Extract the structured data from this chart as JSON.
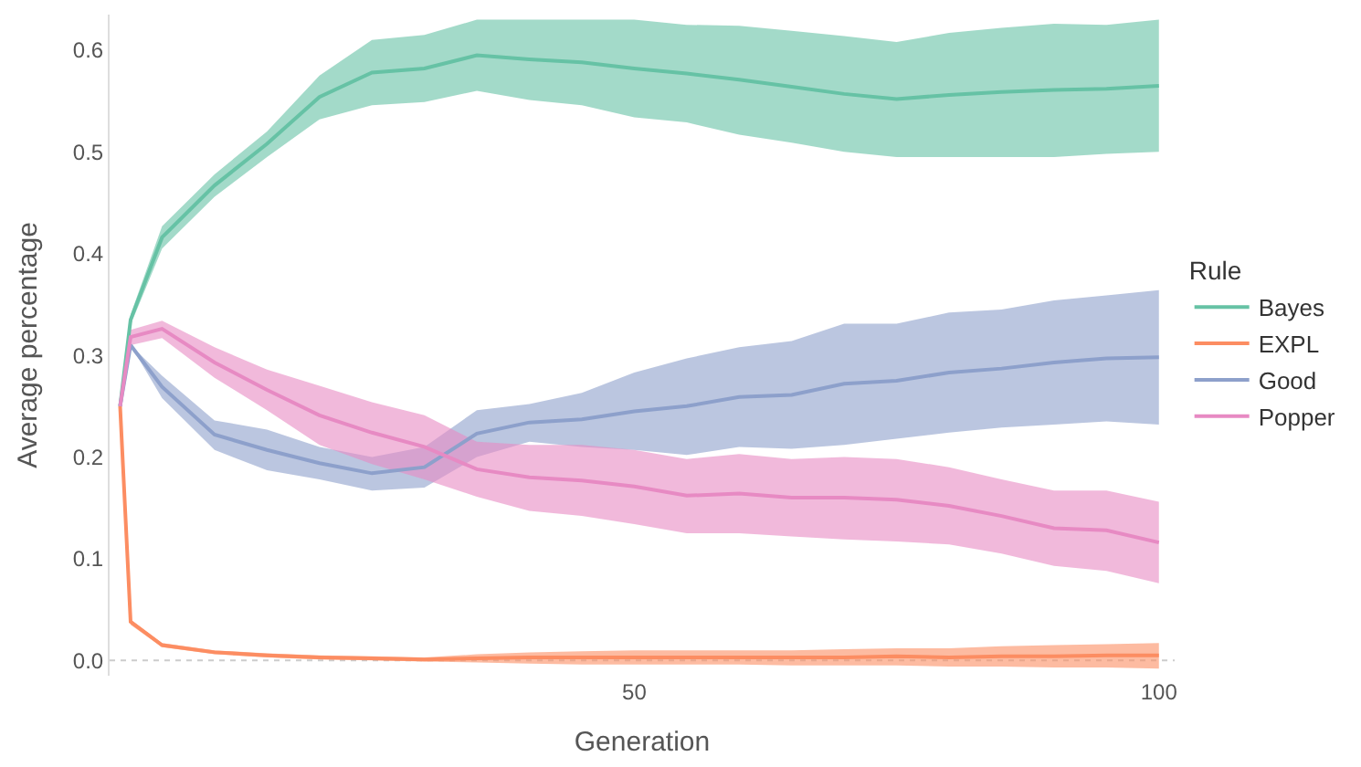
{
  "chart_data": {
    "type": "line",
    "xlabel": "Generation",
    "ylabel": "Average percentage",
    "legend_title": "Rule",
    "legend": "right",
    "x": [
      1,
      2,
      5,
      10,
      15,
      20,
      25,
      30,
      35,
      40,
      45,
      50,
      55,
      60,
      65,
      70,
      75,
      80,
      85,
      90,
      95,
      100
    ],
    "xlim": [
      0,
      101.5
    ],
    "xticks": [
      50,
      100
    ],
    "ylim": [
      -0.015,
      0.635
    ],
    "yticks": [
      {
        "value": 0,
        "label": "0.0"
      },
      0.1,
      0.2,
      0.3,
      0.4,
      0.5,
      0.6
    ],
    "grid": false,
    "ref_lines": [
      {
        "axis": "y",
        "value": 0,
        "color": "#cccccc",
        "line_style": "dotted"
      }
    ],
    "series": [
      {
        "name": "Bayes",
        "color": "#66c2a5",
        "values": [
          0.25,
          0.335,
          0.416,
          0.467,
          0.508,
          0.554,
          0.578,
          0.582,
          0.595,
          0.591,
          0.588,
          0.582,
          0.577,
          0.571,
          0.564,
          0.557,
          0.552,
          0.556,
          0.559,
          0.561,
          0.562,
          0.565
        ],
        "upper": [
          0.25,
          0.34,
          0.427,
          0.478,
          0.52,
          0.575,
          0.61,
          0.615,
          0.63,
          0.63,
          0.63,
          0.63,
          0.625,
          0.624,
          0.619,
          0.614,
          0.608,
          0.617,
          0.622,
          0.626,
          0.625,
          0.63
        ],
        "lower": [
          0.25,
          0.33,
          0.405,
          0.456,
          0.495,
          0.532,
          0.546,
          0.549,
          0.56,
          0.551,
          0.546,
          0.534,
          0.529,
          0.517,
          0.509,
          0.5,
          0.495,
          0.495,
          0.495,
          0.495,
          0.498,
          0.5
        ]
      },
      {
        "name": "EXPL",
        "color": "#fc8d62",
        "values": [
          0.25,
          0.038,
          0.015,
          0.008,
          0.005,
          0.003,
          0.002,
          0.001,
          0.002,
          0.003,
          0.003,
          0.003,
          0.003,
          0.003,
          0.003,
          0.003,
          0.004,
          0.003,
          0.004,
          0.004,
          0.005,
          0.005
        ],
        "upper": [
          0.25,
          0.04,
          0.017,
          0.01,
          0.007,
          0.005,
          0.004,
          0.003,
          0.006,
          0.008,
          0.009,
          0.01,
          0.01,
          0.01,
          0.01,
          0.011,
          0.012,
          0.012,
          0.014,
          0.015,
          0.016,
          0.017
        ],
        "lower": [
          0.25,
          0.035,
          0.013,
          0.006,
          0.003,
          0.001,
          0,
          -0.001,
          -0.002,
          -0.003,
          -0.004,
          -0.004,
          -0.004,
          -0.004,
          -0.005,
          -0.005,
          -0.005,
          -0.006,
          -0.006,
          -0.007,
          -0.007,
          -0.008
        ]
      },
      {
        "name": "Good",
        "color": "#8da0cb",
        "values": [
          0.25,
          0.31,
          0.269,
          0.222,
          0.207,
          0.194,
          0.184,
          0.19,
          0.223,
          0.234,
          0.237,
          0.245,
          0.25,
          0.259,
          0.261,
          0.272,
          0.275,
          0.283,
          0.287,
          0.293,
          0.297,
          0.298
        ],
        "upper": [
          0.25,
          0.31,
          0.28,
          0.236,
          0.227,
          0.21,
          0.2,
          0.21,
          0.246,
          0.252,
          0.263,
          0.283,
          0.297,
          0.308,
          0.314,
          0.331,
          0.331,
          0.342,
          0.345,
          0.354,
          0.359,
          0.364
        ],
        "lower": [
          0.25,
          0.31,
          0.258,
          0.207,
          0.187,
          0.178,
          0.167,
          0.17,
          0.2,
          0.215,
          0.21,
          0.207,
          0.202,
          0.21,
          0.208,
          0.212,
          0.218,
          0.224,
          0.229,
          0.232,
          0.235,
          0.232
        ]
      },
      {
        "name": "Popper",
        "color": "#e78ac3",
        "values": [
          0.25,
          0.318,
          0.326,
          0.293,
          0.266,
          0.241,
          0.224,
          0.21,
          0.188,
          0.18,
          0.177,
          0.171,
          0.162,
          0.164,
          0.16,
          0.16,
          0.158,
          0.152,
          0.142,
          0.13,
          0.128,
          0.116
        ],
        "upper": [
          0.25,
          0.325,
          0.334,
          0.308,
          0.286,
          0.27,
          0.254,
          0.241,
          0.215,
          0.212,
          0.212,
          0.207,
          0.198,
          0.203,
          0.198,
          0.2,
          0.198,
          0.19,
          0.178,
          0.167,
          0.167,
          0.156
        ],
        "lower": [
          0.25,
          0.31,
          0.317,
          0.278,
          0.246,
          0.212,
          0.193,
          0.178,
          0.161,
          0.147,
          0.142,
          0.134,
          0.125,
          0.125,
          0.122,
          0.119,
          0.117,
          0.114,
          0.105,
          0.093,
          0.088,
          0.076
        ]
      }
    ]
  }
}
